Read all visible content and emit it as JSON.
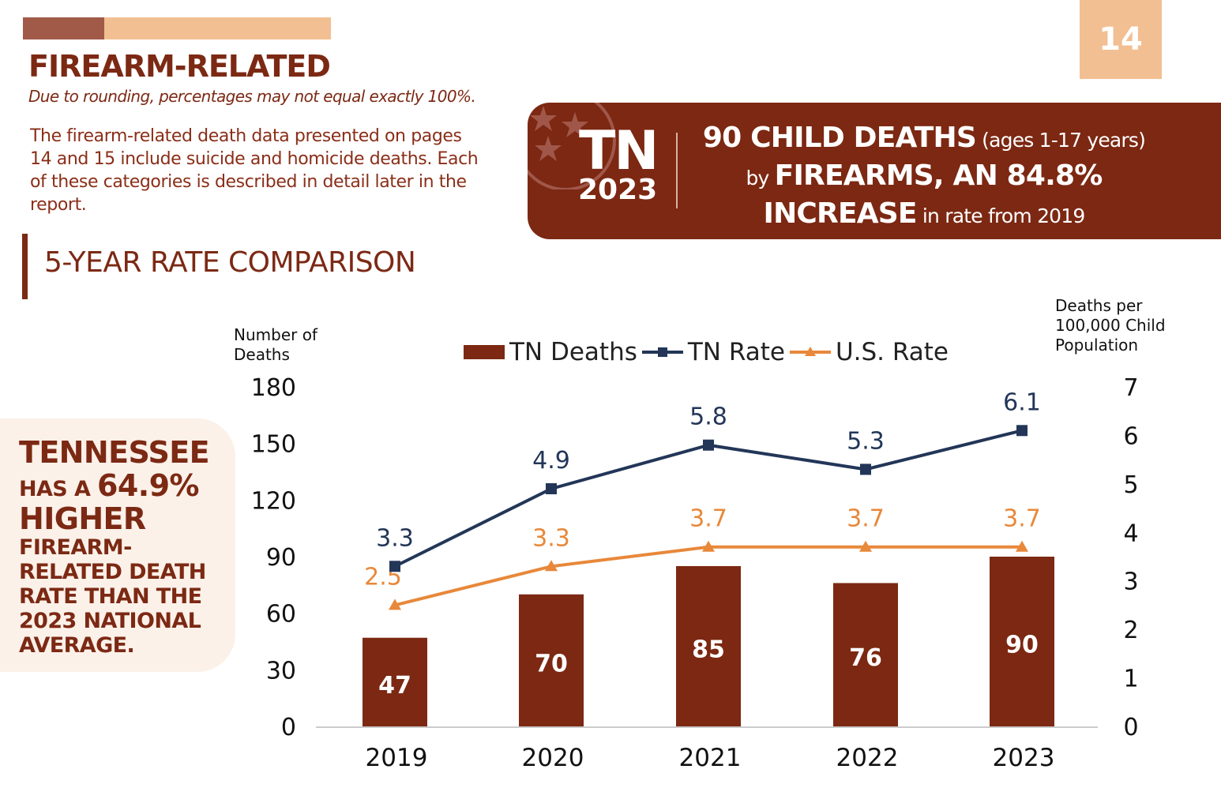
{
  "header": {
    "title": "FIREARM-RELATED",
    "note": "Due to rounding, percentages may not equal exactly 100%.",
    "page_number": "14",
    "description": "The firearm-related death data presented on pages 14 and 15 include  suicide and homicide deaths. Each of these categories is described in detail later in the report."
  },
  "banner": {
    "state": "TN",
    "year": "2023",
    "line1_bold": "90 CHILD DEATHS",
    "line1_small": " (ages 1-17 years)",
    "line2_small": "by ",
    "line2_bold": "FIREARMS, AN 84.8%",
    "line3_bold": "INCREASE",
    "line3_small": " in rate from 2019"
  },
  "section_title": "5-YEAR RATE COMPARISON",
  "callout": {
    "l1": "TENNESSEE",
    "l2a": "HAS A ",
    "l2b": "64.9%",
    "l3": "HIGHER",
    "l4": "FIREARM-",
    "l5": "RELATED DEATH",
    "l6": "RATE THAN THE",
    "l7": "2023 NATIONAL",
    "l8": "AVERAGE."
  },
  "colors": {
    "brand": "#7c2812",
    "tn_rate": "#233658",
    "us_rate": "#e8883a",
    "peach": "#f2bf92"
  },
  "chart_data": {
    "type": "bar+line",
    "categories": [
      "2019",
      "2020",
      "2021",
      "2022",
      "2023"
    ],
    "ylabel_left": "Number of Deaths",
    "ylabel_right": "Deaths per 100,000 Child Population",
    "ylim_left": [
      0,
      180
    ],
    "yticks_left": [
      "0",
      "30",
      "60",
      "90",
      "120",
      "150",
      "180"
    ],
    "ylim_right": [
      0,
      7
    ],
    "yticks_right": [
      "0",
      "1",
      "2",
      "3",
      "4",
      "5",
      "6",
      "7"
    ],
    "legend_placement": "top",
    "series": [
      {
        "name": "TN Deaths",
        "type": "bar",
        "axis": "left",
        "values": [
          47,
          70,
          85,
          76,
          90
        ],
        "labels": [
          "47",
          "70",
          "85",
          "76",
          "90"
        ]
      },
      {
        "name": "TN Rate",
        "type": "line",
        "marker": "square",
        "axis": "right",
        "values": [
          3.3,
          4.9,
          5.8,
          5.3,
          6.1
        ],
        "labels": [
          "3.3",
          "4.9",
          "5.8",
          "5.3",
          "6.1"
        ]
      },
      {
        "name": "U.S. Rate",
        "type": "line",
        "marker": "triangle",
        "axis": "right",
        "values": [
          2.5,
          3.3,
          3.7,
          3.7,
          3.7
        ],
        "labels": [
          "2.5",
          "3.3",
          "3.7",
          "3.7",
          "3.7"
        ]
      }
    ]
  }
}
